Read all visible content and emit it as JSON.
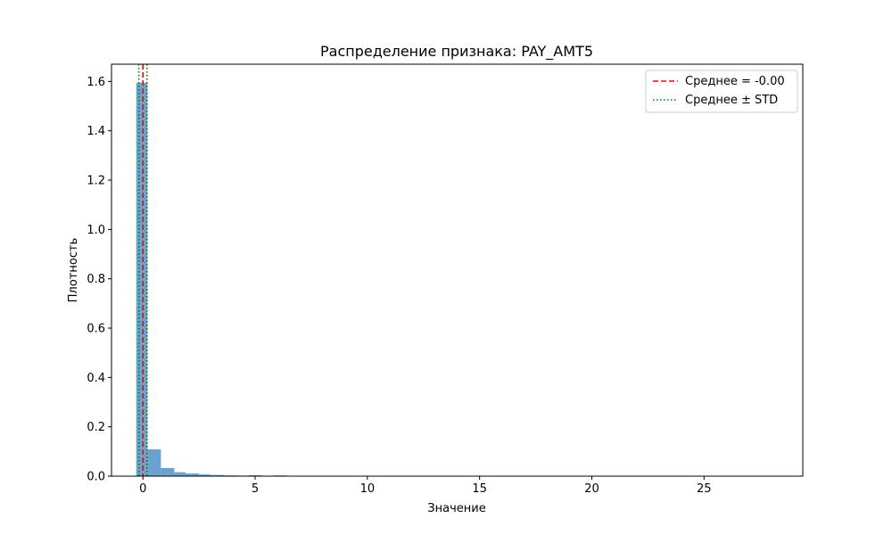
{
  "chart_data": {
    "type": "bar",
    "title": "Распределение признака: PAY_AMT5",
    "xlabel": "Значение",
    "ylabel": "Плотность",
    "xlim": [
      -1.4,
      29.4
    ],
    "ylim": [
      0,
      1.67
    ],
    "xticks": [
      "0",
      "5",
      "10",
      "15",
      "20",
      "25"
    ],
    "xtick_values": [
      0,
      5,
      10,
      15,
      20,
      25
    ],
    "yticks": [
      "0.0",
      "0.2",
      "0.4",
      "0.6",
      "0.8",
      "1.0",
      "1.2",
      "1.4",
      "1.6"
    ],
    "ytick_values": [
      0,
      0.2,
      0.4,
      0.6,
      0.8,
      1.0,
      1.2,
      1.4,
      1.6
    ],
    "bin_edges": [
      -0.3,
      0.2,
      0.8,
      1.4,
      1.9,
      2.5,
      3.0,
      3.6,
      4.2,
      4.7,
      5.3,
      5.8,
      6.4
    ],
    "densities": [
      1.595,
      0.109,
      0.033,
      0.016,
      0.011,
      0.007,
      0.005,
      0.003,
      0.002,
      0.004,
      0.001,
      0.003
    ],
    "bar_color": "#6aa3cf",
    "mean": 0.0,
    "std": 0.18,
    "legend": {
      "position": "top-right",
      "entries": [
        {
          "label": "Среднее = -0.00",
          "color": "#ff0000",
          "style": "dashed"
        },
        {
          "label": "Среднее ± STD",
          "color": "#008000",
          "style": "dotted"
        }
      ]
    },
    "grid": false
  }
}
